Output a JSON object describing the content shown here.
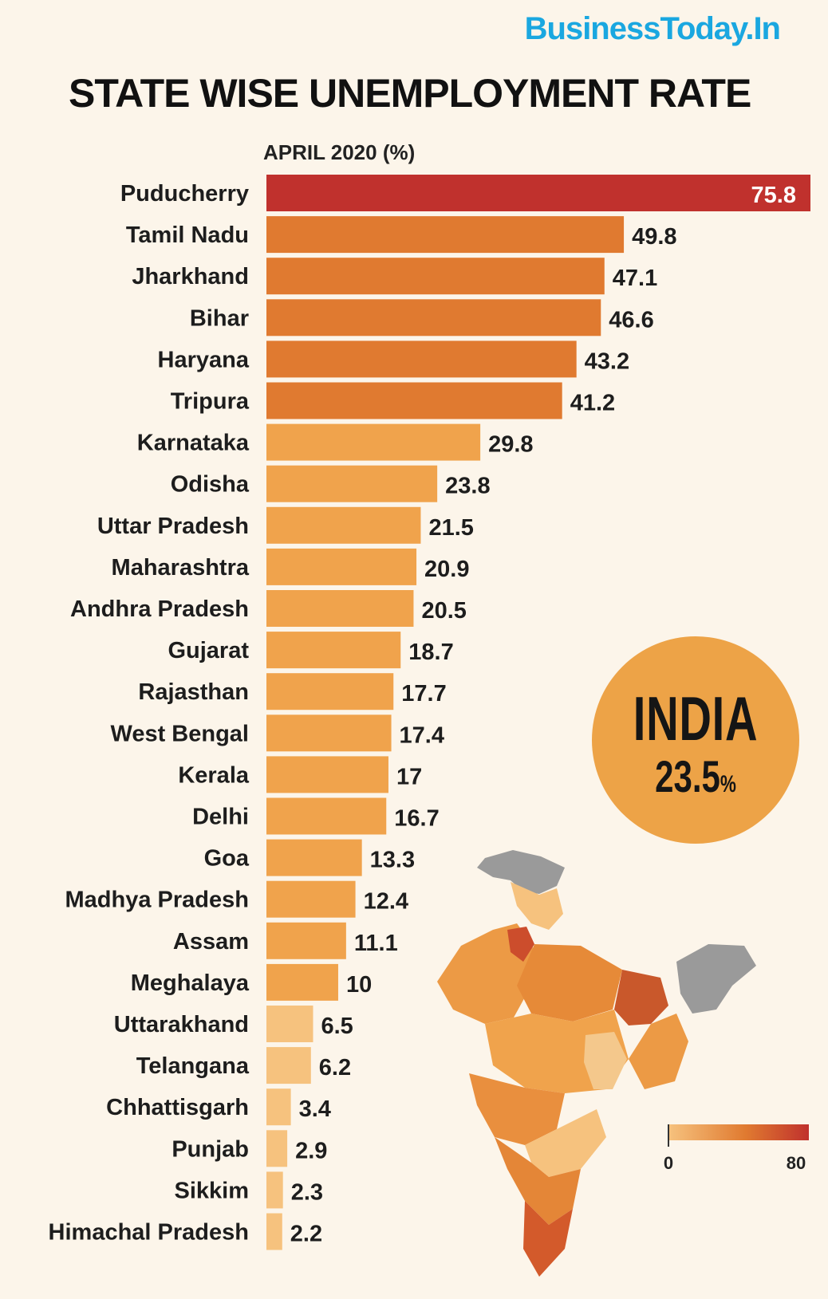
{
  "brand": "BusinessToday.In",
  "chart_data": {
    "type": "bar",
    "orientation": "horizontal",
    "title": "STATE WISE UNEMPLOYMENT RATE",
    "subtitle": "APRIL 2020 (%)",
    "categories": [
      "Puducherry",
      "Tamil Nadu",
      "Jharkhand",
      "Bihar",
      "Haryana",
      "Tripura",
      "Karnataka",
      "Odisha",
      "Uttar Pradesh",
      "Maharashtra",
      "Andhra Pradesh",
      "Gujarat",
      "Rajasthan",
      "West Bengal",
      "Kerala",
      "Delhi",
      "Goa",
      "Madhya Pradesh",
      "Assam",
      "Meghalaya",
      "Uttarakhand",
      "Telangana",
      "Chhattisgarh",
      "Punjab",
      "Sikkim",
      "Himachal Pradesh"
    ],
    "values": [
      75.8,
      49.8,
      47.1,
      46.6,
      43.2,
      41.2,
      29.8,
      23.8,
      21.5,
      20.9,
      20.5,
      18.7,
      17.7,
      17.4,
      17,
      16.7,
      13.3,
      12.4,
      11.1,
      10,
      6.5,
      6.2,
      3.4,
      2.9,
      2.3,
      2.2
    ],
    "value_labels": [
      "75.8",
      "49.8",
      "47.1",
      "46.6",
      "43.2",
      "41.2",
      "29.8",
      "23.8",
      "21.5",
      "20.9",
      "20.5",
      "18.7",
      "17.7",
      "17.4",
      "17",
      "16.7",
      "13.3",
      "12.4",
      "11.1",
      "10",
      "6.5",
      "6.2",
      "3.4",
      "2.9",
      "2.3",
      "2.2"
    ],
    "xlim": [
      0,
      75.8
    ],
    "grid": false,
    "legend": {
      "type": "color-scale",
      "min_label": "0",
      "max_label": "80",
      "min": 0,
      "max": 80
    }
  },
  "india": {
    "title": "INDIA",
    "value": "23.5",
    "unit": "%"
  },
  "colors": {
    "background": "#fcf5ea",
    "brand": "#1aa7e0",
    "bar_top": "#c0312d",
    "bar_high": "#e07a30",
    "bar_mid": "#f0a34c",
    "bar_low": "#f6c27e",
    "badge": "#eda347",
    "map_gray": "#9a9a9a"
  }
}
